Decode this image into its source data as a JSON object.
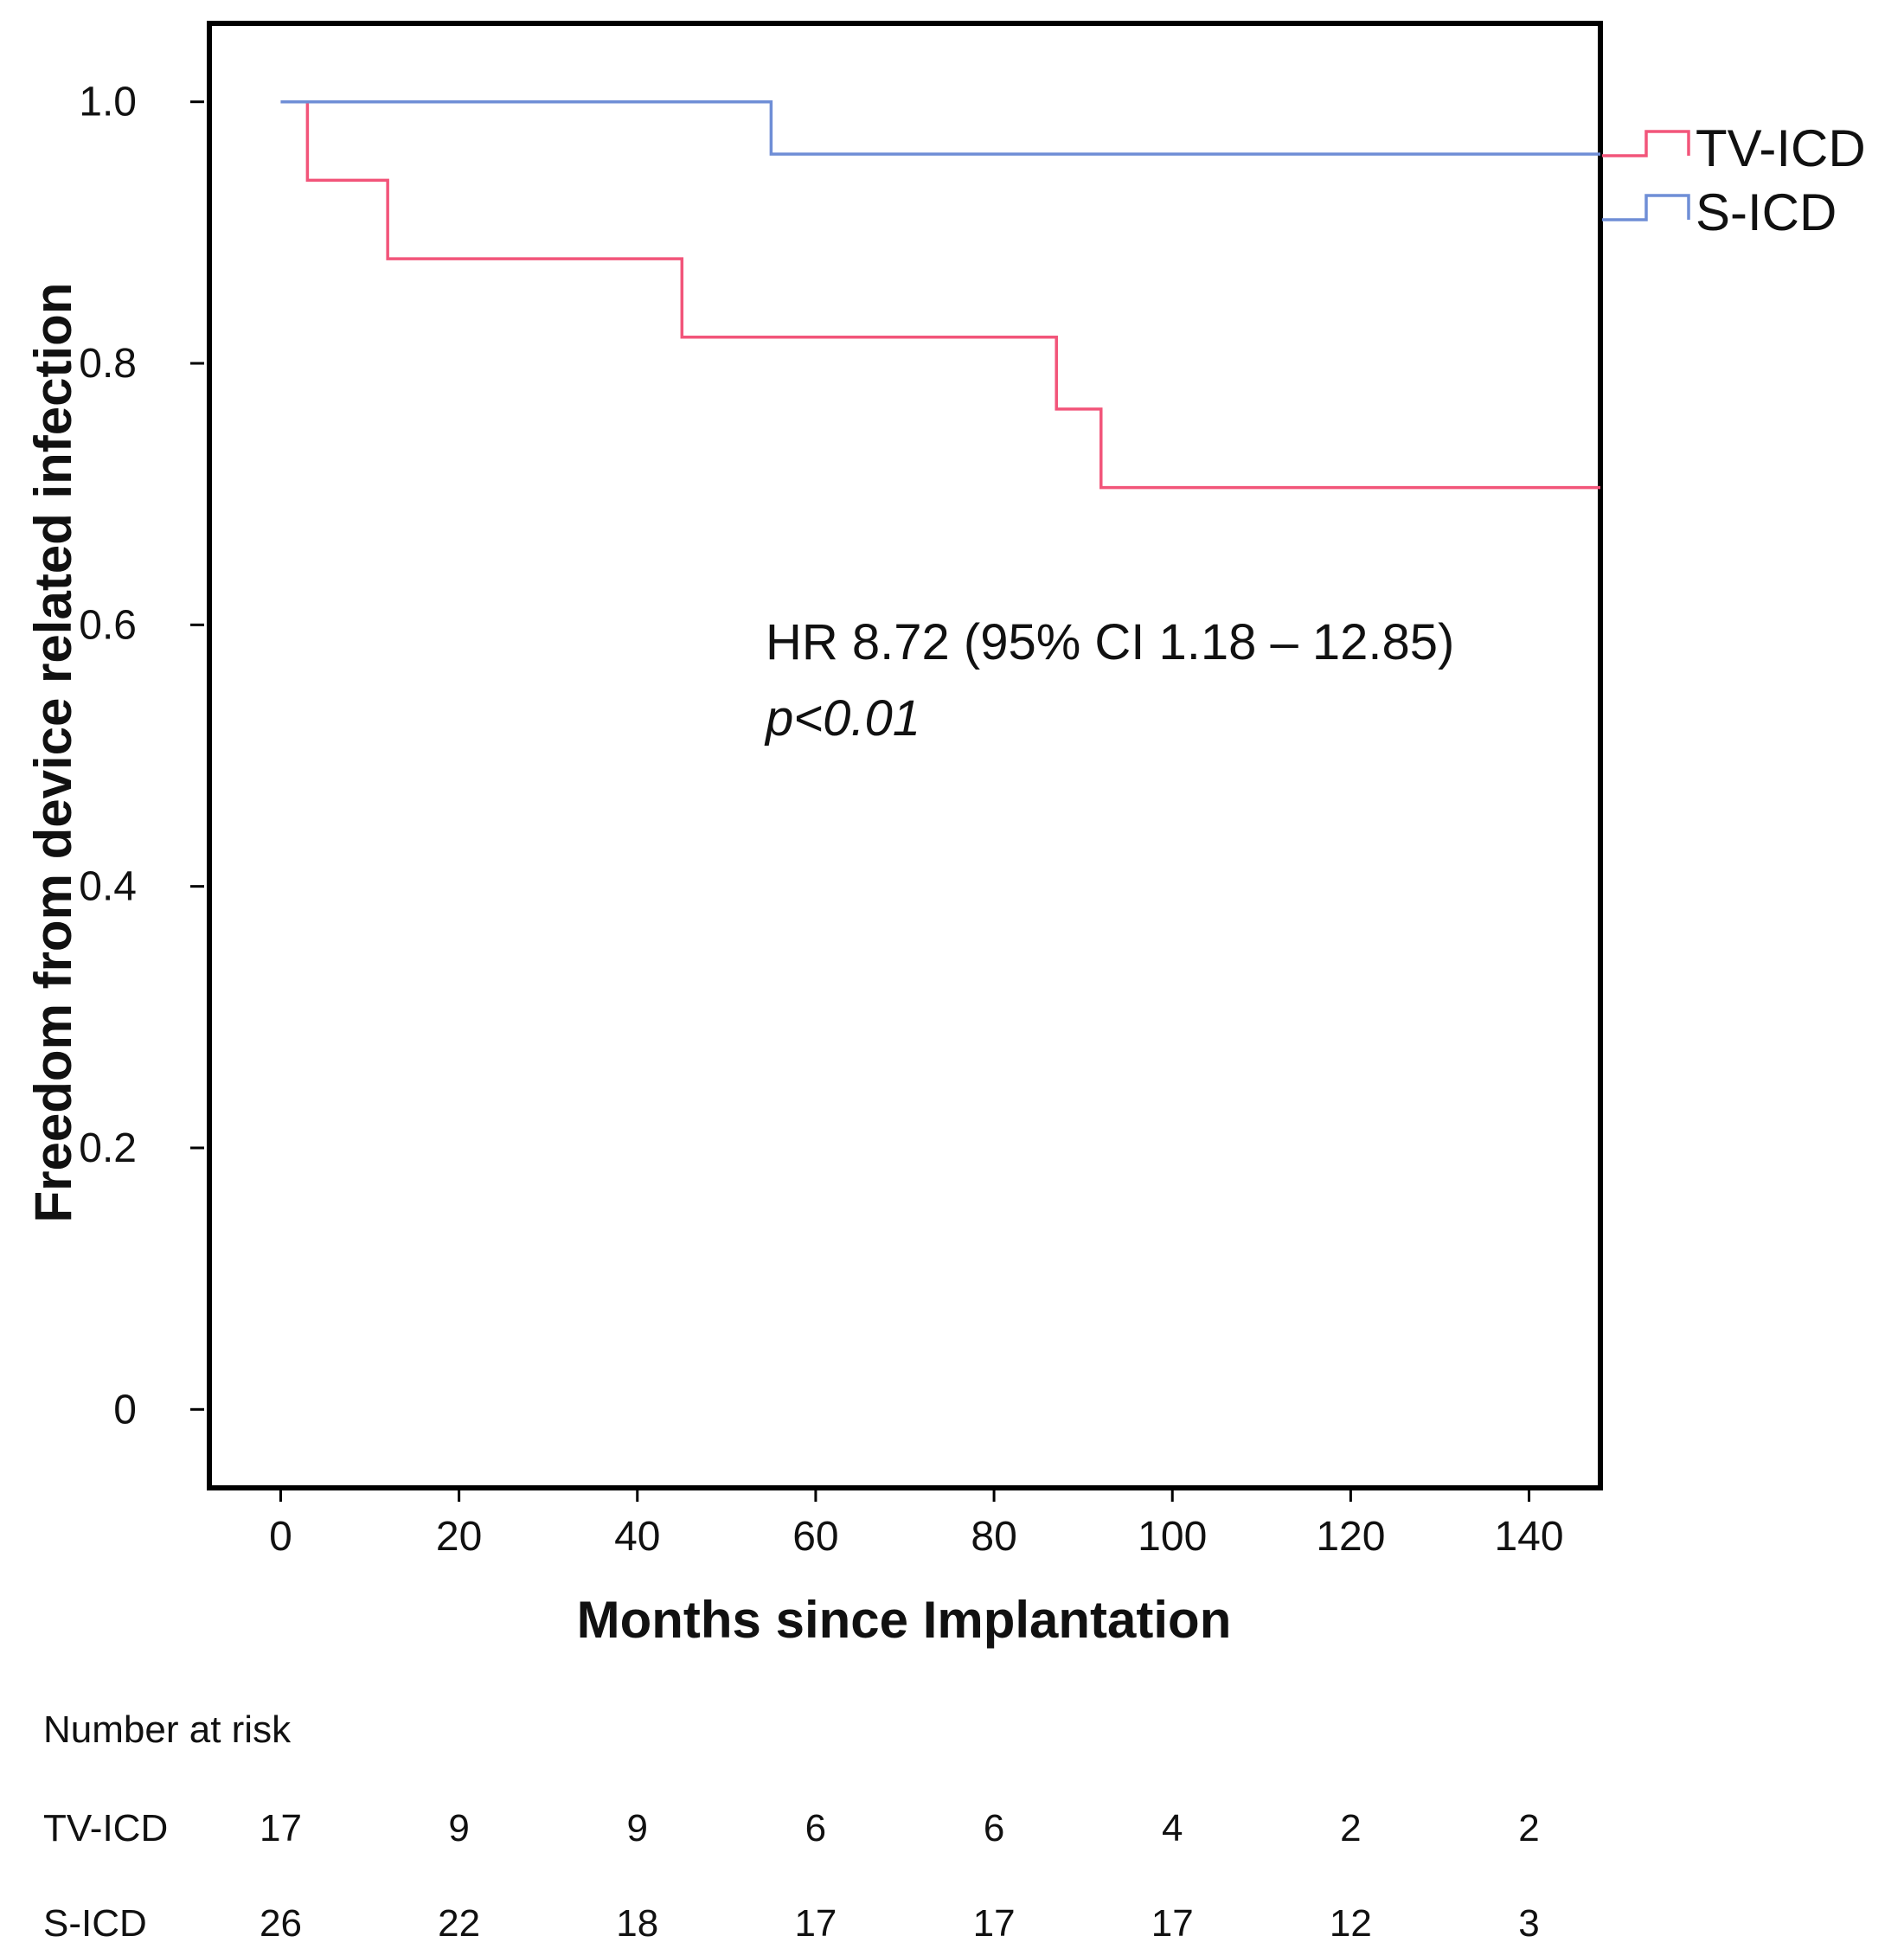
{
  "chart_data": {
    "type": "line",
    "subtype": "kaplan-meier step",
    "xlabel": "Months since Implantation",
    "ylabel": "Freedom from device related infection",
    "xlim": [
      -8,
      148
    ],
    "ylim": [
      -0.06,
      1.06
    ],
    "x_ticks": [
      0,
      20,
      40,
      60,
      80,
      100,
      120,
      140
    ],
    "y_ticks": [
      0,
      0.2,
      0.4,
      0.6,
      0.8,
      1.0
    ],
    "y_tick_labels": [
      "0",
      "0.2",
      "0.4",
      "0.6",
      "0.8",
      "1.0"
    ],
    "legend_position": "right, outside top",
    "series": [
      {
        "name": "TV-ICD",
        "color": "#f2557a",
        "steps": [
          [
            0,
            1.0
          ],
          [
            3,
            0.94
          ],
          [
            12,
            0.88
          ],
          [
            45,
            0.82
          ],
          [
            87,
            0.765
          ],
          [
            92,
            0.705
          ],
          [
            148,
            0.705
          ]
        ]
      },
      {
        "name": "S-ICD",
        "color": "#6f8ed6",
        "steps": [
          [
            0,
            1.0
          ],
          [
            55,
            0.96
          ],
          [
            148,
            0.96
          ]
        ]
      }
    ],
    "annotations": {
      "hr": "HR 8.72 (95% CI 1.18 – 12.85)",
      "p": "p<0.01"
    },
    "risk_table": {
      "title": "Number at risk",
      "rows": [
        {
          "label": "TV-ICD",
          "values": [
            "17",
            "9",
            "9",
            "6",
            "6",
            "4",
            "2",
            "2"
          ]
        },
        {
          "label": "S-ICD",
          "values": [
            "26",
            "22",
            "18",
            "17",
            "17",
            "17",
            "12",
            "3"
          ]
        }
      ]
    }
  }
}
